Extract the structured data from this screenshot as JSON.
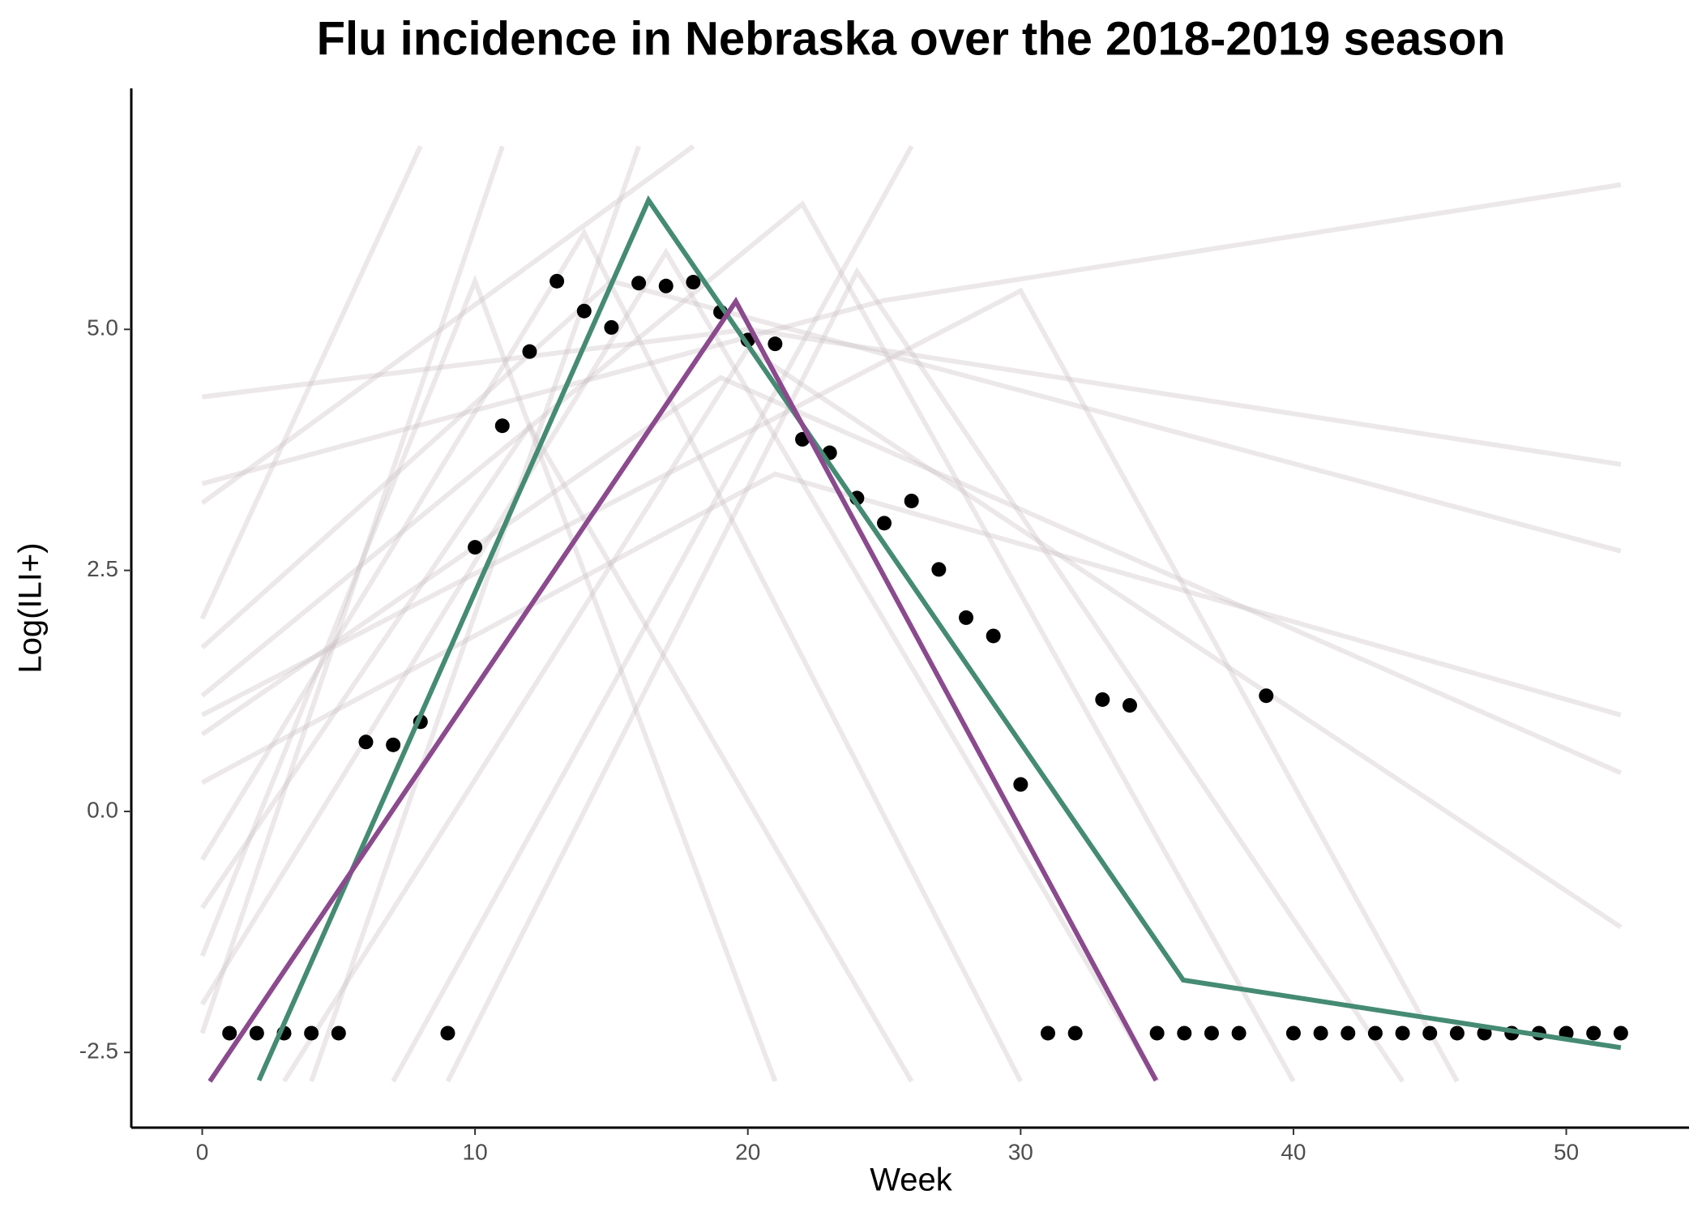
{
  "chart_data": {
    "type": "line",
    "title": "Flu incidence in Nebraska over the 2018-2019 season",
    "x_label": "Week",
    "y_label": "Log(ILI+)",
    "xlim": [
      -2.6,
      54.5
    ],
    "ylim": [
      -3.28,
      7.5
    ],
    "xticks": [
      0,
      10,
      20,
      30,
      40,
      50
    ],
    "yticks": [
      -2.5,
      {
        "value": 0,
        "label": "0.0"
      },
      2.5,
      {
        "value": 5,
        "label": "5.0"
      }
    ],
    "grid": false,
    "sample_color": "#c9bec2",
    "sample_lines": [
      {
        "x": [
          0,
          10,
          21
        ],
        "values": [
          -1.5,
          5.5,
          -2.8
        ]
      },
      {
        "x": [
          0,
          14,
          30
        ],
        "values": [
          -0.5,
          6.0,
          -2.8
        ]
      },
      {
        "x": [
          0,
          20,
          52
        ],
        "values": [
          4.3,
          5.0,
          3.6
        ]
      },
      {
        "x": [
          0,
          18
        ],
        "values": [
          3.2,
          6.9
        ]
      },
      {
        "x": [
          0,
          8
        ],
        "values": [
          2.0,
          6.9
        ]
      },
      {
        "x": [
          0,
          17,
          35
        ],
        "values": [
          -2.0,
          5.8,
          -2.8
        ]
      },
      {
        "x": [
          0,
          19,
          52
        ],
        "values": [
          0.8,
          4.5,
          0.4
        ]
      },
      {
        "x": [
          0,
          25,
          52
        ],
        "values": [
          3.4,
          5.3,
          6.5
        ]
      },
      {
        "x": [
          0,
          22,
          40
        ],
        "values": [
          1.2,
          6.3,
          -2.8
        ]
      },
      {
        "x": [
          4,
          16
        ],
        "values": [
          -2.8,
          6.9
        ]
      },
      {
        "x": [
          0,
          12,
          26
        ],
        "values": [
          -1.0,
          4.0,
          -2.8
        ]
      },
      {
        "x": [
          3,
          20,
          52
        ],
        "values": [
          -2.8,
          4.8,
          -1.2
        ]
      },
      {
        "x": [
          0,
          15,
          52
        ],
        "values": [
          1.7,
          5.5,
          2.7
        ]
      },
      {
        "x": [
          7,
          26
        ],
        "values": [
          -2.8,
          6.9
        ]
      },
      {
        "x": [
          0,
          21,
          52
        ],
        "values": [
          0.3,
          3.5,
          1.0
        ]
      },
      {
        "x": [
          0,
          11
        ],
        "values": [
          -2.3,
          6.9
        ]
      },
      {
        "x": [
          9,
          24,
          44
        ],
        "values": [
          -2.8,
          5.6,
          -2.8
        ]
      },
      {
        "x": [
          0,
          30,
          46
        ],
        "values": [
          1.0,
          5.4,
          -2.8
        ]
      }
    ],
    "series": [
      {
        "style": "points",
        "color": "#000000",
        "x": [
          1,
          2,
          3,
          4,
          5,
          6,
          7,
          8,
          9,
          10,
          11,
          12,
          13,
          14,
          15,
          16,
          17,
          18,
          19,
          20,
          21,
          22,
          23,
          24,
          25,
          26,
          27,
          28,
          29,
          30,
          31,
          32,
          33,
          34,
          35,
          36,
          37,
          38,
          39,
          40,
          41,
          42,
          43,
          44,
          45,
          46,
          47,
          48,
          49,
          50,
          51,
          52
        ],
        "values": [
          -2.3,
          -2.3,
          -2.3,
          -2.3,
          -2.3,
          0.72,
          0.69,
          0.93,
          -2.3,
          2.74,
          4.0,
          4.77,
          5.5,
          5.19,
          5.02,
          5.48,
          5.45,
          5.49,
          5.18,
          4.89,
          4.85,
          3.86,
          3.72,
          3.25,
          2.99,
          3.22,
          2.51,
          2.01,
          1.82,
          0.28,
          -2.3,
          -2.3,
          1.16,
          1.1,
          -2.3,
          -2.3,
          -2.3,
          -2.3,
          1.2,
          -2.3,
          -2.3,
          -2.3,
          -2.3,
          -2.3,
          -2.3,
          -2.3,
          -2.3,
          -2.3,
          -2.3,
          -2.3,
          -2.3,
          -2.3
        ]
      },
      {
        "style": "line",
        "color": "#458b73",
        "x": [
          2.08,
          16.36,
          35.96,
          52
        ],
        "values": [
          -2.79,
          6.34,
          -1.75,
          -2.45
        ]
      },
      {
        "style": "line",
        "color": "#8b4a8e",
        "x": [
          0.28,
          19.56,
          34.96
        ],
        "values": [
          -2.8,
          5.29,
          -2.79
        ]
      }
    ]
  }
}
